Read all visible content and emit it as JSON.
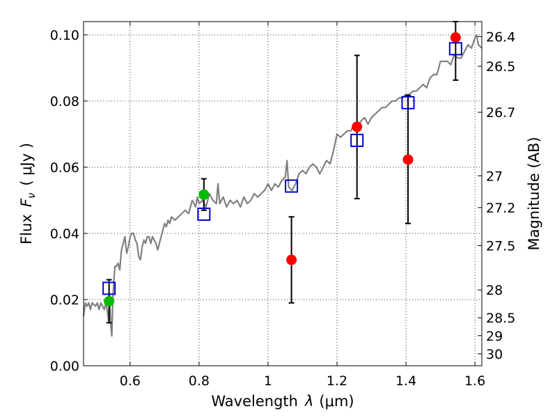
{
  "chart_data": {
    "type": "scatter",
    "title": "",
    "xlabel": "Wavelength",
    "xlabel_symbol": "λ",
    "xlabel_unit": "(μm)",
    "ylabel": "Flux",
    "ylabel_symbol": "F",
    "ylabel_subscript": "ν",
    "ylabel_unit": "( μJy )",
    "y2label": "Magnitude (AB)",
    "xlim": [
      0.465,
      1.62
    ],
    "ylim": [
      0.0,
      0.104
    ],
    "grid": true,
    "xticks": [
      0.6,
      0.8,
      1.0,
      1.2,
      1.4,
      1.6
    ],
    "xtick_labels": [
      "0.6",
      "0.8",
      "1",
      "1.2",
      "1.4",
      "1.6"
    ],
    "yticks": [
      0.0,
      0.02,
      0.04,
      0.06,
      0.08,
      0.1
    ],
    "ytick_labels": [
      "0.00",
      "0.02",
      "0.04",
      "0.06",
      "0.08",
      "0.10"
    ],
    "magnitude_ticks": [
      {
        "label": "26.4",
        "flux": 0.0995
      },
      {
        "label": "26.5",
        "flux": 0.0905
      },
      {
        "label": "26.7",
        "flux": 0.0766
      },
      {
        "label": "27",
        "flux": 0.0574
      },
      {
        "label": "27.2",
        "flux": 0.0478
      },
      {
        "label": "27.5",
        "flux": 0.0363
      },
      {
        "label": "28",
        "flux": 0.0229
      },
      {
        "label": "28.5",
        "flux": 0.0145
      },
      {
        "label": "29",
        "flux": 0.0091
      },
      {
        "label": "30",
        "flux": 0.0036
      }
    ],
    "series": [
      {
        "name": "model-spectrum",
        "kind": "line",
        "color": "#808080",
        "x": [
          0.465,
          0.47,
          0.475,
          0.48,
          0.485,
          0.49,
          0.5,
          0.505,
          0.51,
          0.515,
          0.52,
          0.525,
          0.53,
          0.535,
          0.538,
          0.541,
          0.544,
          0.547,
          0.55,
          0.553,
          0.556,
          0.56,
          0.565,
          0.57,
          0.575,
          0.58,
          0.585,
          0.59,
          0.595,
          0.6,
          0.605,
          0.61,
          0.615,
          0.62,
          0.625,
          0.63,
          0.635,
          0.64,
          0.645,
          0.65,
          0.655,
          0.66,
          0.665,
          0.67,
          0.675,
          0.68,
          0.69,
          0.7,
          0.705,
          0.71,
          0.715,
          0.72,
          0.73,
          0.74,
          0.75,
          0.76,
          0.77,
          0.78,
          0.785,
          0.79,
          0.795,
          0.8,
          0.81,
          0.82,
          0.83,
          0.84,
          0.85,
          0.855,
          0.86,
          0.87,
          0.88,
          0.89,
          0.9,
          0.91,
          0.92,
          0.93,
          0.94,
          0.95,
          0.96,
          0.97,
          0.98,
          0.99,
          1.0,
          1.01,
          1.02,
          1.03,
          1.04,
          1.05,
          1.055,
          1.06,
          1.07,
          1.08,
          1.09,
          1.1,
          1.11,
          1.12,
          1.13,
          1.14,
          1.15,
          1.16,
          1.17,
          1.18,
          1.19,
          1.2,
          1.21,
          1.22,
          1.23,
          1.24,
          1.25,
          1.26,
          1.27,
          1.28,
          1.29,
          1.3,
          1.31,
          1.32,
          1.33,
          1.34,
          1.35,
          1.36,
          1.37,
          1.38,
          1.39,
          1.4,
          1.41,
          1.42,
          1.43,
          1.44,
          1.45,
          1.46,
          1.47,
          1.48,
          1.49,
          1.5,
          1.51,
          1.52,
          1.53,
          1.54,
          1.55,
          1.56,
          1.57,
          1.58,
          1.59,
          1.6,
          1.605,
          1.61,
          1.62
        ],
        "values": [
          0.015,
          0.019,
          0.018,
          0.019,
          0.017,
          0.019,
          0.018,
          0.019,
          0.017,
          0.019,
          0.018,
          0.017,
          0.019,
          0.016,
          0.013,
          0.021,
          0.012,
          0.009,
          0.02,
          0.026,
          0.03,
          0.03,
          0.031,
          0.029,
          0.035,
          0.037,
          0.039,
          0.034,
          0.036,
          0.039,
          0.04,
          0.04,
          0.038,
          0.037,
          0.033,
          0.032,
          0.036,
          0.038,
          0.037,
          0.039,
          0.039,
          0.037,
          0.039,
          0.038,
          0.037,
          0.035,
          0.039,
          0.043,
          0.042,
          0.044,
          0.043,
          0.045,
          0.044,
          0.045,
          0.046,
          0.047,
          0.046,
          0.05,
          0.049,
          0.048,
          0.051,
          0.049,
          0.05,
          0.048,
          0.052,
          0.05,
          0.049,
          0.055,
          0.049,
          0.051,
          0.048,
          0.05,
          0.049,
          0.05,
          0.048,
          0.051,
          0.049,
          0.05,
          0.052,
          0.051,
          0.052,
          0.053,
          0.055,
          0.053,
          0.055,
          0.054,
          0.056,
          0.057,
          0.062,
          0.054,
          0.053,
          0.055,
          0.058,
          0.059,
          0.058,
          0.06,
          0.061,
          0.06,
          0.058,
          0.06,
          0.062,
          0.061,
          0.065,
          0.07,
          0.069,
          0.07,
          0.071,
          0.071,
          0.073,
          0.072,
          0.074,
          0.075,
          0.073,
          0.075,
          0.076,
          0.077,
          0.078,
          0.078,
          0.079,
          0.08,
          0.08,
          0.081,
          0.081,
          0.082,
          0.082,
          0.083,
          0.083,
          0.084,
          0.085,
          0.084,
          0.087,
          0.088,
          0.088,
          0.092,
          0.092,
          0.092,
          0.091,
          0.094,
          0.093,
          0.093,
          0.095,
          0.097,
          0.096,
          0.099,
          0.1,
          0.097,
          0.096
        ]
      },
      {
        "name": "green-points",
        "kind": "point",
        "color": "#00bb00",
        "x": [
          0.539,
          0.814
        ],
        "values": [
          0.0195,
          0.0517
        ],
        "error_low": [
          0.013,
          0.047
        ],
        "error_high": [
          0.026,
          0.0565
        ]
      },
      {
        "name": "red-points",
        "kind": "point",
        "color": "#ff0000",
        "x": [
          1.068,
          1.258,
          1.406,
          1.544
        ],
        "values": [
          0.032,
          0.0722,
          0.0623,
          0.0992
        ],
        "error_low": [
          0.019,
          0.0505,
          0.043,
          0.0863
        ],
        "error_high": [
          0.045,
          0.0938,
          0.0817,
          0.104
        ]
      },
      {
        "name": "model-bandpass",
        "kind": "open-square",
        "color": "#0000cc",
        "x": [
          0.539,
          0.814,
          1.068,
          1.258,
          1.406,
          1.544
        ],
        "values": [
          0.0234,
          0.0458,
          0.0543,
          0.0681,
          0.0795,
          0.0958
        ]
      }
    ]
  }
}
